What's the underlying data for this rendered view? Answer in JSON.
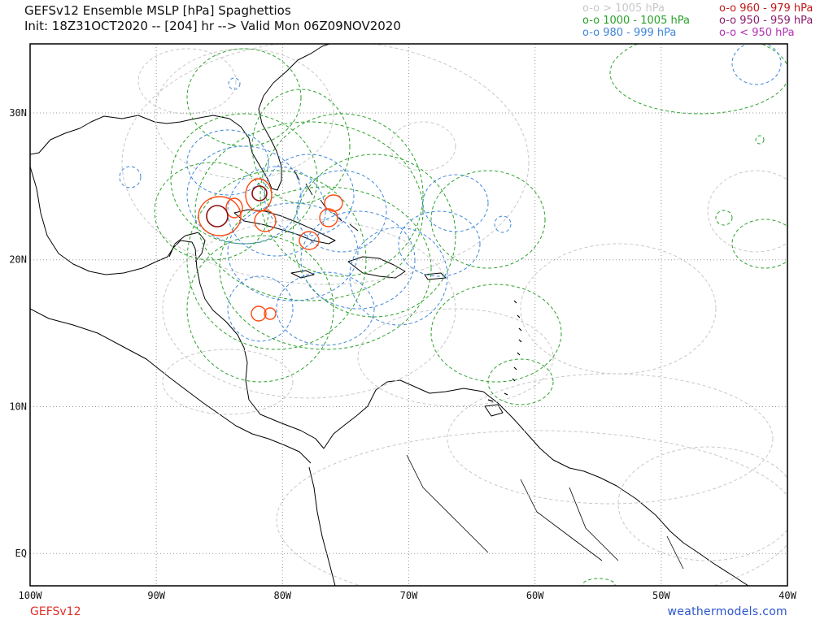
{
  "header": {
    "title_line1": "GEFSv12 Ensemble MSLP [hPa] Spaghettios",
    "title_line2": "Init: 18Z31OCT2020 -- [204] hr --> Valid Mon 06Z09NOV2020"
  },
  "legend": {
    "items": [
      {
        "label": "o-o > 1005 hPa",
        "color": "#c8c8c8"
      },
      {
        "label": "o-o 1000 - 1005 hPa",
        "color": "#2aa12a"
      },
      {
        "label": "o-o 980 - 999 hPa",
        "color": "#3f86d8"
      },
      {
        "label": "o-o 960 - 979 hPa",
        "color": "#c0191a"
      },
      {
        "label": "o-o 950 - 959 hPa",
        "color": "#8a1d6e"
      },
      {
        "label": "o-o < 950 hPa",
        "color": "#b52fb5"
      }
    ]
  },
  "map": {
    "lon_range": [
      -100,
      -40
    ],
    "lat_range": [
      -2.2,
      34.7
    ],
    "lon_ticks": [
      "100W",
      "90W",
      "80W",
      "70W",
      "60W",
      "50W",
      "40W"
    ],
    "lat_ticks": [
      "30N",
      "20N",
      "10N",
      "EQ"
    ],
    "grid": true,
    "colors": {
      "land_outline": "#000000",
      "grid": "#999999",
      "orange_contour": "#ff4a12",
      "dark_red_contour": "#8c1010"
    }
  },
  "footer": {
    "left": "GEFSv12",
    "right": "weathermodels.com"
  }
}
